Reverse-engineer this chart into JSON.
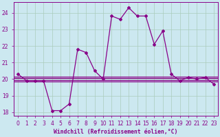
{
  "x": [
    0,
    1,
    2,
    3,
    4,
    5,
    6,
    7,
    8,
    9,
    10,
    11,
    12,
    13,
    14,
    15,
    16,
    17,
    18,
    19,
    20,
    21,
    22,
    23
  ],
  "temp_line": [
    20.3,
    19.9,
    19.9,
    19.9,
    18.1,
    18.1,
    18.5,
    21.8,
    21.6,
    20.5,
    20.0,
    23.8,
    23.6,
    24.3,
    23.8,
    23.8,
    22.1,
    22.9,
    20.3,
    19.9,
    20.1,
    20.0,
    20.1,
    19.7
  ],
  "flat_lines": [
    19.85,
    19.95,
    20.05,
    20.15
  ],
  "bg_color": "#cce8f0",
  "grid_color": "#aaccbb",
  "line_color": "#880088",
  "marker_size": 2.0,
  "xlabel": "Windchill (Refroidissement éolien,°C)",
  "ylim": [
    17.8,
    24.65
  ],
  "xlim": [
    -0.5,
    23.5
  ],
  "yticks": [
    18,
    19,
    20,
    21,
    22,
    23,
    24
  ],
  "tick_fontsize": 5.5,
  "xlabel_fontsize": 5.8
}
